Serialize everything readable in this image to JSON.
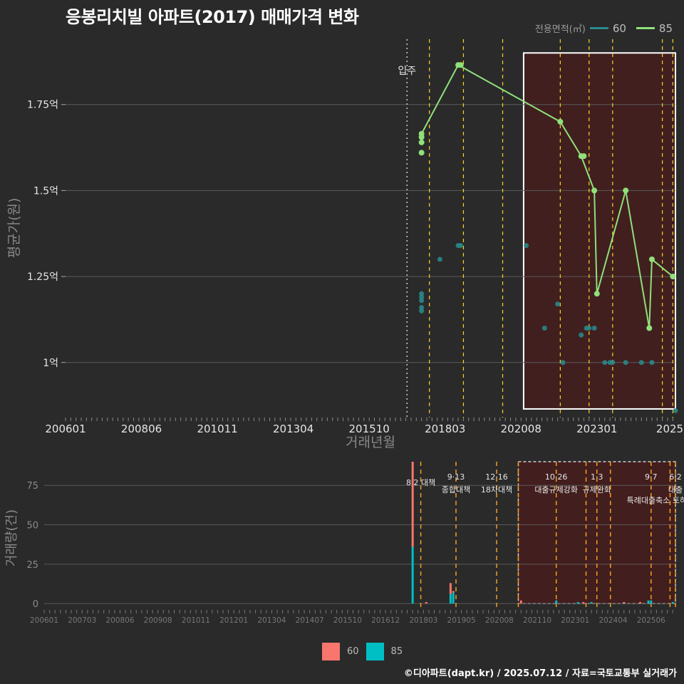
{
  "title": "응봉리치빌 아파트(2017) 매매가격 변화",
  "credit": "©디아파트(dapt.kr) / 2025.07.12 / 자료=국토교통부 실거래가",
  "colors": {
    "background": "#2a2a2b",
    "area60_line": "#2a8c8c",
    "area85_line": "#90e07a",
    "vol60": "#f8766d",
    "vol85": "#00bfc4",
    "policy_line": "#ffd21f",
    "highlight_fill": "#4a1c1c",
    "grid": "#5a5a5a"
  },
  "legend_top": {
    "title": "전용면적(㎡)",
    "items": [
      "60",
      "85"
    ]
  },
  "legend_bottom": {
    "items": [
      "60",
      "85"
    ]
  },
  "chart_data": [
    {
      "type": "line",
      "panel": "price",
      "title": "응봉리치빌 아파트(2017) 매매가격 변화",
      "xlabel": "거래년월",
      "ylabel": "평균가(원)",
      "x_tick_labels": [
        "200601",
        "200806",
        "201011",
        "201304",
        "201510",
        "201803",
        "202008",
        "202301",
        "2025"
      ],
      "y_tick_labels": [
        "1억",
        "1.25억",
        "1.5억",
        "1.75억"
      ],
      "y_ticks": [
        1.0,
        1.25,
        1.5,
        1.75
      ],
      "ylim": [
        0.84,
        1.94
      ],
      "xlim": [
        "2006-01",
        "2025-06"
      ],
      "move_in": {
        "date": "2016-12",
        "label": "입주"
      },
      "policy_dates": [
        "2017-08",
        "2018-09",
        "2019-12",
        "2021-10",
        "2022-09",
        "2023-06",
        "2025-01",
        "2025-05"
      ],
      "highlight_range": [
        "2020-08",
        "2025-06"
      ],
      "series": [
        {
          "name": "60",
          "points": [
            [
              "2017-05",
              1.2
            ],
            [
              "2017-05",
              1.19
            ],
            [
              "2017-05",
              1.18
            ],
            [
              "2017-05",
              1.16
            ],
            [
              "2017-05",
              1.15
            ],
            [
              "2017-12",
              1.3
            ],
            [
              "2018-07",
              1.34
            ],
            [
              "2018-08",
              1.34
            ],
            [
              "2020-09",
              1.34
            ],
            [
              "2021-04",
              1.1
            ],
            [
              "2021-09",
              1.17
            ],
            [
              "2021-11",
              1.0
            ],
            [
              "2022-06",
              1.08
            ],
            [
              "2022-08",
              1.1
            ],
            [
              "2022-09",
              1.1
            ],
            [
              "2022-11",
              1.1
            ],
            [
              "2023-03",
              1.0
            ],
            [
              "2023-05",
              1.0
            ],
            [
              "2023-06",
              1.0
            ],
            [
              "2023-11",
              1.0
            ],
            [
              "2024-05",
              1.0
            ],
            [
              "2024-09",
              1.0
            ],
            [
              "2025-06",
              0.86
            ]
          ]
        },
        {
          "name": "85",
          "points": [
            [
              "2017-05",
              1.665
            ],
            [
              "2017-05",
              1.655
            ],
            [
              "2017-05",
              1.64
            ],
            [
              "2017-05",
              1.61
            ],
            [
              "2018-07",
              1.865
            ],
            [
              "2018-08",
              1.865
            ],
            [
              "2021-10",
              1.7
            ],
            [
              "2022-06",
              1.6
            ],
            [
              "2022-07",
              1.6
            ],
            [
              "2022-11",
              1.5
            ],
            [
              "2022-12",
              1.2
            ],
            [
              "2023-11",
              1.5
            ],
            [
              "2024-08",
              1.1
            ],
            [
              "2024-09",
              1.3
            ],
            [
              "2025-05",
              1.25
            ]
          ],
          "line": [
            [
              "2017-05",
              1.665
            ],
            [
              "2018-07",
              1.865
            ],
            [
              "2021-10",
              1.7
            ],
            [
              "2022-06",
              1.6
            ],
            [
              "2022-11",
              1.5
            ],
            [
              "2022-12",
              1.2
            ],
            [
              "2023-11",
              1.5
            ],
            [
              "2024-08",
              1.1
            ],
            [
              "2024-09",
              1.3
            ],
            [
              "2025-05",
              1.25
            ]
          ]
        }
      ]
    },
    {
      "type": "bar",
      "panel": "volume",
      "ylabel": "거래량(건)",
      "x_tick_labels": [
        "200601",
        "200703",
        "200806",
        "200908",
        "201011",
        "201201",
        "201304",
        "201407",
        "201510",
        "201612",
        "201803",
        "201905",
        "202008",
        "202110",
        "202301",
        "202404",
        "202506"
      ],
      "y_tick_labels": [
        "0",
        "25",
        "50",
        "75"
      ],
      "y_ticks": [
        0,
        25,
        50,
        75
      ],
      "ylim": [
        -4,
        90
      ],
      "xlim": [
        "2006-01",
        "2025-06"
      ],
      "highlight_range": [
        "2020-08",
        "2025-06"
      ],
      "policies": [
        {
          "date": "2017-08",
          "line1": "8·2 대책",
          "line2": ""
        },
        {
          "date": "2018-09",
          "line1": "9·13",
          "line2": "종합대책"
        },
        {
          "date": "2019-12",
          "line1": "12·16",
          "line2": "18차대책"
        },
        {
          "date": "2020-08",
          "line1": "",
          "line2": ""
        },
        {
          "date": "2021-10",
          "line1": "10·26",
          "line2": "대출규제강화"
        },
        {
          "date": "2022-09",
          "line1": "",
          "line2": ""
        },
        {
          "date": "2023-01",
          "line1": "1·3",
          "line2": "규제완화"
        },
        {
          "date": "2023-06",
          "line1": "",
          "line2": ""
        },
        {
          "date": "2024-09",
          "line1": "9·7",
          "line2": "특례대출축소 토허제 해"
        },
        {
          "date": "2025-04",
          "line1": "",
          "line2": ""
        },
        {
          "date": "2025-06",
          "line1": "6·2",
          "line2": "대출"
        }
      ],
      "series": [
        {
          "name": "60",
          "points": [
            [
              "2017-05",
              54
            ],
            [
              "2017-10",
              1
            ],
            [
              "2018-07",
              7
            ],
            [
              "2018-08",
              1
            ],
            [
              "2020-09",
              2
            ],
            [
              "2022-08",
              1
            ],
            [
              "2023-11",
              1
            ],
            [
              "2024-05",
              1
            ]
          ]
        },
        {
          "name": "85",
          "points": [
            [
              "2017-05",
              36
            ],
            [
              "2018-07",
              6
            ],
            [
              "2018-08",
              7
            ],
            [
              "2021-10",
              2
            ],
            [
              "2022-06",
              1
            ],
            [
              "2022-11",
              1
            ],
            [
              "2024-08",
              2
            ],
            [
              "2024-09",
              2
            ],
            [
              "2025-05",
              1
            ]
          ]
        }
      ]
    }
  ]
}
